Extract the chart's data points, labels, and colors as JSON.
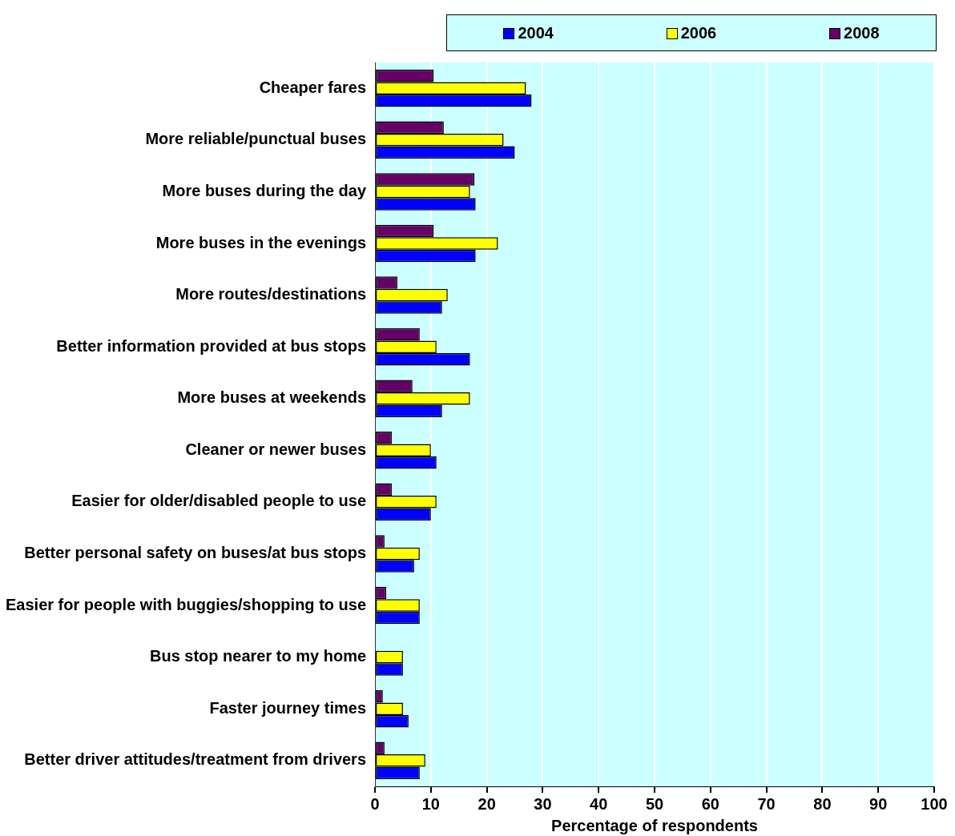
{
  "chart_data": {
    "type": "bar",
    "orientation": "horizontal",
    "xlabel": "Percentage of respondents",
    "categories": [
      "Cheaper fares",
      "More reliable/punctual buses",
      "More buses during the day",
      "More buses in the evenings",
      "More routes/destinations",
      "Better information provided at bus stops",
      "More buses at weekends",
      "Cleaner or newer buses",
      "Easier for older/disabled people to use",
      "Better personal safety on buses/at bus stops",
      "Easier for people with buggies/shopping to use",
      "Bus stop nearer to my home",
      "Faster journey times",
      "Better driver attitudes/treatment from drivers"
    ],
    "series": [
      {
        "name": "2004",
        "color": "#0000ff",
        "values": [
          28,
          25,
          18,
          18,
          12,
          17,
          12,
          11,
          10,
          7,
          8,
          5,
          6,
          8
        ]
      },
      {
        "name": "2006",
        "color": "#ffff00",
        "values": [
          27,
          23,
          17,
          22,
          13,
          11,
          17,
          10,
          11,
          8,
          8,
          5,
          5,
          9
        ]
      },
      {
        "name": "2008",
        "color": "#660066",
        "values": [
          10.5,
          12.3,
          17.8,
          10.5,
          4,
          8,
          6.7,
          3,
          3,
          1.7,
          2,
          null,
          1.4,
          1.7
        ]
      }
    ],
    "xlim": [
      0,
      100
    ],
    "xticks": [
      0,
      10,
      20,
      30,
      40,
      50,
      60,
      70,
      80,
      90,
      100
    ],
    "grid": "x",
    "legend": "top"
  }
}
